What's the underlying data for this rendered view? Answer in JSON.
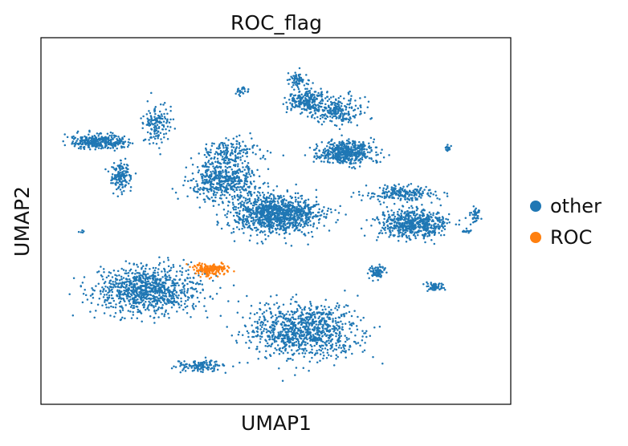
{
  "chart_data": {
    "type": "scatter",
    "title": "ROC_flag",
    "xlabel": "UMAP1",
    "ylabel": "UMAP2",
    "xlim": [
      0,
      100
    ],
    "ylim": [
      0,
      100
    ],
    "grid": false,
    "ticks": false,
    "legend_placement": "right",
    "series": [
      {
        "name": "other",
        "color": "#1f77b4",
        "clusters": [
          {
            "label": "central-body",
            "cx": 50,
            "cy": 52,
            "rx": 9,
            "ry": 5,
            "n": 1100
          },
          {
            "label": "central-tail",
            "cx": 38,
            "cy": 62,
            "rx": 7,
            "ry": 5,
            "n": 520
          },
          {
            "label": "central-arc",
            "cx": 40,
            "cy": 70,
            "rx": 6,
            "ry": 3,
            "n": 160
          },
          {
            "label": "left-lower",
            "cx": 21,
            "cy": 30,
            "rx": 11,
            "ry": 6,
            "n": 950
          },
          {
            "label": "bottom-middle",
            "cx": 56,
            "cy": 18,
            "rx": 11,
            "ry": 7,
            "n": 950
          },
          {
            "label": "bottom-left-band",
            "cx": 33,
            "cy": 8,
            "rx": 5,
            "ry": 1.7,
            "n": 130
          },
          {
            "label": "right-middle",
            "cx": 81,
            "cy": 49,
            "rx": 7,
            "ry": 4,
            "n": 600
          },
          {
            "label": "right-upper-band",
            "cx": 78,
            "cy": 58,
            "rx": 7,
            "ry": 2,
            "n": 210
          },
          {
            "label": "top-right-cluster",
            "cx": 66,
            "cy": 70,
            "rx": 6,
            "ry": 3,
            "n": 500
          },
          {
            "label": "top-arc-left",
            "cx": 57,
            "cy": 85,
            "rx": 4,
            "ry": 3,
            "n": 230
          },
          {
            "label": "top-arc-right",
            "cx": 64,
            "cy": 82,
            "rx": 5,
            "ry": 3.5,
            "n": 230
          },
          {
            "label": "top-arc-peak",
            "cx": 55,
            "cy": 91,
            "rx": 2,
            "ry": 2,
            "n": 70
          },
          {
            "label": "upper-left-band",
            "cx": 10,
            "cy": 73,
            "rx": 6,
            "ry": 2,
            "n": 320
          },
          {
            "label": "upper-left-stem",
            "cx": 15,
            "cy": 63,
            "rx": 2,
            "ry": 4,
            "n": 160
          },
          {
            "label": "upper-left-arm",
            "cx": 23,
            "cy": 78,
            "rx": 3,
            "ry": 5,
            "n": 150
          },
          {
            "label": "small-right-blob",
            "cx": 73,
            "cy": 35,
            "rx": 1.6,
            "ry": 1.6,
            "n": 80
          },
          {
            "label": "right-tail",
            "cx": 86,
            "cy": 31,
            "rx": 2,
            "ry": 1,
            "n": 60
          },
          {
            "label": "far-right-dots",
            "cx": 95,
            "cy": 52,
            "rx": 1,
            "ry": 2,
            "n": 40
          },
          {
            "label": "far-right-top",
            "cx": 89,
            "cy": 71,
            "rx": 0.6,
            "ry": 0.8,
            "n": 20
          },
          {
            "label": "far-right-mid",
            "cx": 93,
            "cy": 47,
            "rx": 1,
            "ry": 0.5,
            "n": 15
          },
          {
            "label": "top-left-small",
            "cx": 42,
            "cy": 88,
            "rx": 2,
            "ry": 1,
            "n": 25
          },
          {
            "label": "left-edge-dot",
            "cx": 6,
            "cy": 47,
            "rx": 0.5,
            "ry": 0.5,
            "n": 5
          }
        ]
      },
      {
        "name": "ROC",
        "color": "#ff7f0e",
        "clusters": [
          {
            "label": "roc-group",
            "cx": 35,
            "cy": 36,
            "rx": 3.6,
            "ry": 1.6,
            "n": 170
          }
        ]
      }
    ]
  }
}
